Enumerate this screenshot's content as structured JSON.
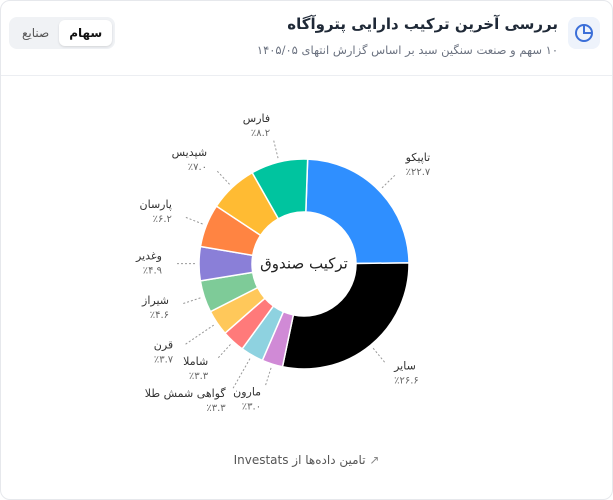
{
  "header": {
    "title": "بررسی آخرین ترکیب دارایی پتروآگاه",
    "subtitle": "۱۰ سهم و صنعت سنگین سبد بر اساس گزارش انتهای ۱۴۰۵/۰۵"
  },
  "tabs": [
    "سهام",
    "صنایع"
  ],
  "footer": "تامین داده‌ها از Investats",
  "chart_data": {
    "type": "pie",
    "center_label": "ترکیب صندوق",
    "categories": [
      "تاپیکو",
      "سایر",
      "مارون",
      "گواهی شمش طلا",
      "شاملا",
      "قرن",
      "شیراز",
      "وغدیر",
      "پارسان",
      "شپدیس",
      "فارس"
    ],
    "values": [
      22.7,
      26.6,
      3.0,
      3.3,
      3.3,
      3.7,
      4.6,
      4.9,
      6.2,
      7.0,
      8.2
    ],
    "value_labels": [
      "٪۲۲.۷",
      "٪۲۶.۶",
      "٪۳.۰",
      "٪۳.۳",
      "٪۳.۳",
      "٪۳.۷",
      "٪۴.۶",
      "٪۴.۹",
      "٪۶.۲",
      "٪۷.۰",
      "٪۸.۲"
    ],
    "colors": [
      "#2f8fff",
      "#000000",
      "#d08ad6",
      "#8ed2e0",
      "#ff7a7a",
      "#ffc85a",
      "#7ecb98",
      "#8a7fd8",
      "#ff8442",
      "#ffbb33",
      "#00c49f"
    ]
  }
}
